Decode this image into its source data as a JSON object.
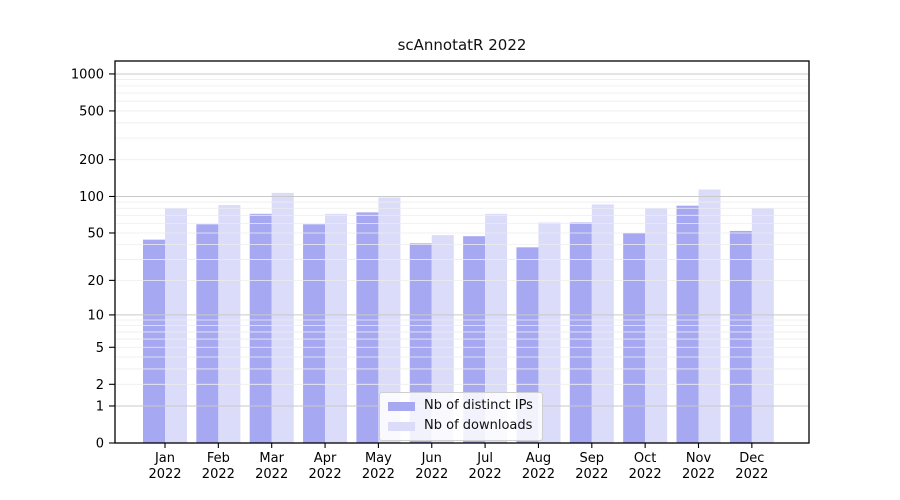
{
  "chart_data": {
    "type": "bar",
    "title": "scAnnotatR 2022",
    "categories": [
      "Jan",
      "Feb",
      "Mar",
      "Apr",
      "May",
      "Jun",
      "Jul",
      "Aug",
      "Sep",
      "Oct",
      "Nov",
      "Dec"
    ],
    "x_year_label": "2022",
    "series": [
      {
        "name": "Nb of distinct IPs",
        "color": "#a7a8f2",
        "values": [
          44,
          59,
          72,
          59,
          74,
          41,
          47,
          38,
          61,
          50,
          84,
          52
        ]
      },
      {
        "name": "Nb of downloads",
        "color": "#dadcf9",
        "values": [
          80,
          85,
          107,
          72,
          98,
          48,
          72,
          61,
          86,
          80,
          114,
          80
        ]
      }
    ],
    "yscale": "log1p",
    "yticks": [
      1000,
      500,
      200,
      100,
      50,
      20,
      10,
      5,
      2,
      1,
      0
    ],
    "ylim": [
      0,
      1275
    ],
    "grid": {
      "major_at": [
        1,
        10,
        100,
        1000
      ],
      "minor_at": [
        2,
        3,
        4,
        5,
        6,
        7,
        8,
        9,
        20,
        30,
        40,
        50,
        60,
        70,
        80,
        90,
        200,
        300,
        400,
        500,
        600,
        700,
        800,
        900
      ]
    },
    "legend_position": "inside-bottom-center",
    "xlabel": "",
    "ylabel": ""
  },
  "colors": {
    "background": "#ffffff",
    "axis": "#000000",
    "tick_text": "#000000",
    "major_grid": "#c9c9c9",
    "minor_grid": "#ededed",
    "distinct_ips_bar": "#a7a8f2",
    "downloads_bar": "#dadcf9"
  }
}
